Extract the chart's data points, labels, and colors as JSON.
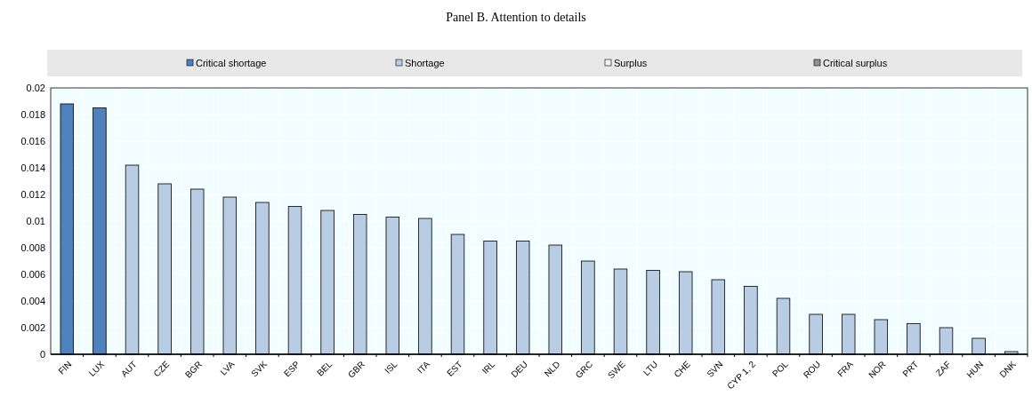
{
  "chart_data": {
    "type": "bar",
    "title": "Panel B. Attention to details",
    "stacked": true,
    "categories": [
      "FIN",
      "LUX",
      "AUT",
      "CZE",
      "BGR",
      "LVA",
      "SVK",
      "ESP",
      "BEL",
      "GBR",
      "ISL",
      "ITA",
      "EST",
      "IRL",
      "DEU",
      "NLD",
      "GRC",
      "SWE",
      "LTU",
      "CHE",
      "SVN",
      "CYP 1, 2",
      "POL",
      "ROU",
      "FRA",
      "NOR",
      "PRT",
      "ZAF",
      "HUN",
      "DNK"
    ],
    "series": [
      {
        "name": "Critical shortage",
        "color": "#4f81bd",
        "values": [
          0.0188,
          0.0185,
          null,
          null,
          null,
          null,
          null,
          null,
          null,
          null,
          null,
          null,
          null,
          null,
          null,
          null,
          null,
          null,
          null,
          null,
          null,
          null,
          null,
          null,
          null,
          null,
          null,
          null,
          null,
          null
        ]
      },
      {
        "name": "Shortage",
        "color": "#b8cce4",
        "values": [
          null,
          null,
          0.0142,
          0.0128,
          0.0124,
          0.0118,
          0.0114,
          0.0111,
          0.0108,
          0.0105,
          0.0103,
          0.0102,
          0.009,
          0.0085,
          0.0085,
          0.0082,
          0.007,
          0.0064,
          0.0063,
          0.0062,
          0.0056,
          0.0051,
          0.0042,
          0.003,
          0.003,
          0.0026,
          0.0023,
          0.002,
          0.0012,
          0.0002
        ]
      },
      {
        "name": "Surplus",
        "color": "#f2f2f2",
        "values": [
          null,
          null,
          null,
          null,
          null,
          null,
          null,
          null,
          null,
          null,
          null,
          null,
          null,
          null,
          null,
          null,
          null,
          null,
          null,
          null,
          null,
          null,
          null,
          null,
          null,
          null,
          null,
          null,
          null,
          null
        ]
      },
      {
        "name": "Critical surplus",
        "color": "#929292",
        "values": [
          null,
          null,
          null,
          null,
          null,
          null,
          null,
          null,
          null,
          null,
          null,
          null,
          null,
          null,
          null,
          null,
          null,
          null,
          null,
          null,
          null,
          null,
          null,
          null,
          null,
          null,
          null,
          null,
          null,
          null
        ]
      }
    ],
    "ylim": [
      0,
      0.02
    ],
    "yticks": [
      0,
      0.002,
      0.004,
      0.006,
      0.008,
      0.01,
      0.012,
      0.014,
      0.016,
      0.018,
      0.02
    ],
    "grid": true,
    "legend": "top"
  }
}
